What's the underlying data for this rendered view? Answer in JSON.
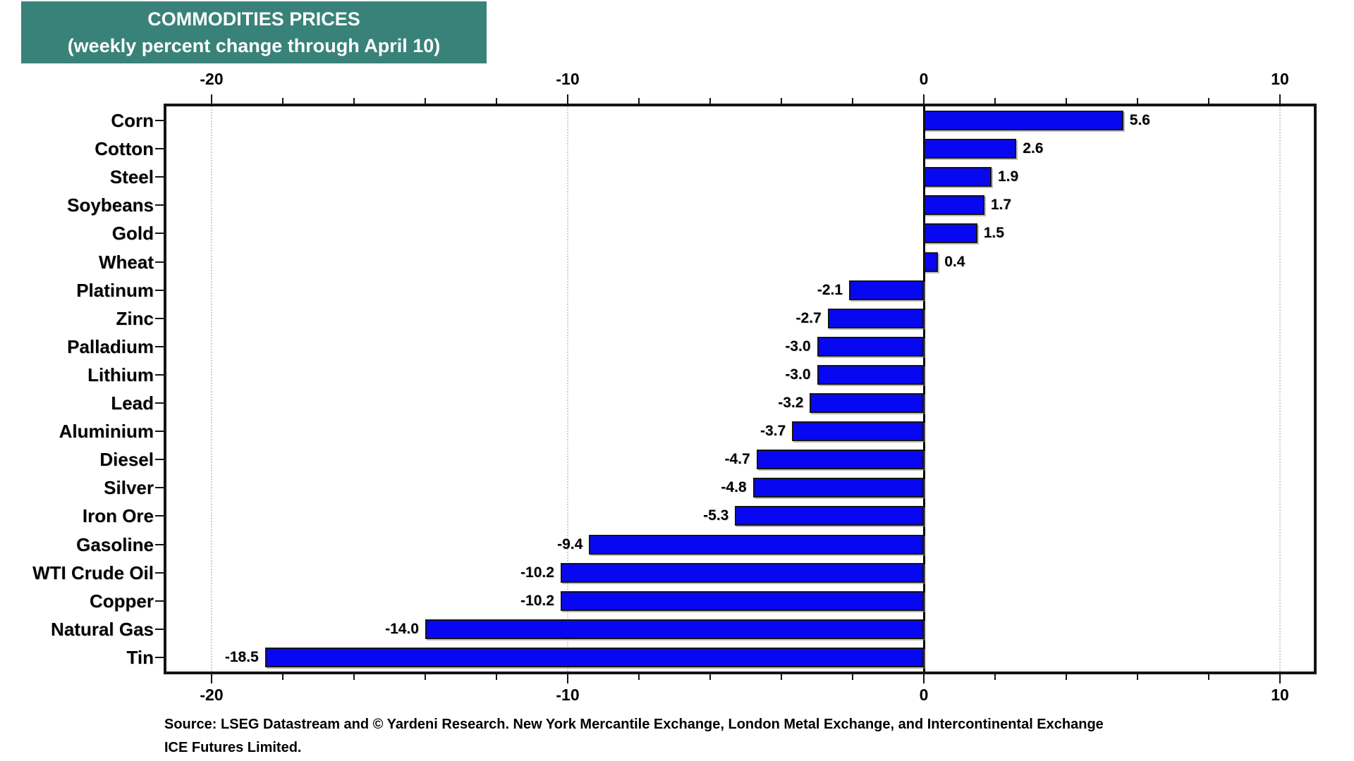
{
  "title": {
    "line1": "COMMODITIES PRICES",
    "line2": "(weekly percent change through April 10)"
  },
  "source": {
    "line1": "Source: LSEG Datastream and © Yardeni Research. New York Mercantile Exchange, London Metal Exchange, and Intercontinental Exchange",
    "line2": "ICE Futures Limited."
  },
  "colors": {
    "title_bg": "#398279",
    "title_text": "#ffffff",
    "bar_fill": "#0707f2",
    "bar_border": "#141414",
    "axis": "#141414",
    "gridline": "#cfcfcf",
    "label_text": "#000000"
  },
  "chart_data": {
    "type": "bar",
    "orientation": "horizontal",
    "title": "COMMODITIES PRICES (weekly percent change through April 10)",
    "categories": [
      "Corn",
      "Cotton",
      "Steel",
      "Soybeans",
      "Gold",
      "Wheat",
      "Platinum",
      "Zinc",
      "Palladium",
      "Lithium",
      "Lead",
      "Aluminium",
      "Diesel",
      "Silver",
      "Iron Ore",
      "Gasoline",
      "WTI Crude Oil",
      "Copper",
      "Natural Gas",
      "Tin"
    ],
    "values": [
      5.6,
      2.6,
      1.9,
      1.7,
      1.5,
      0.4,
      -2.1,
      -2.7,
      -3.0,
      -3.0,
      -3.2,
      -3.7,
      -4.7,
      -4.8,
      -5.3,
      -9.4,
      -10.2,
      -10.2,
      -14.0,
      -18.5
    ],
    "value_labels": [
      "5.6",
      "2.6",
      "1.9",
      "1.7",
      "1.5",
      "0.4",
      "-2.1",
      "-2.7",
      "-3.0",
      "-3.0",
      "-3.2",
      "-3.7",
      "-4.7",
      "-4.8",
      "-5.3",
      "-9.4",
      "-10.2",
      "-10.2",
      "-14.0",
      "-18.5"
    ],
    "xlim": [
      -21.3,
      11.0
    ],
    "x_major_ticks": [
      -20,
      -10,
      0,
      10
    ],
    "x_major_tick_labels": [
      "-20",
      "-10",
      "0",
      "10"
    ],
    "x_minor_ticks": [
      -18,
      -16,
      -14,
      -12,
      -8,
      -6,
      -4,
      -2,
      2,
      4,
      6,
      8
    ],
    "grid": "dotted vertical gridlines at major ticks, solid black line at zero",
    "axis_label_positions": "top and bottom",
    "legend": "none"
  }
}
